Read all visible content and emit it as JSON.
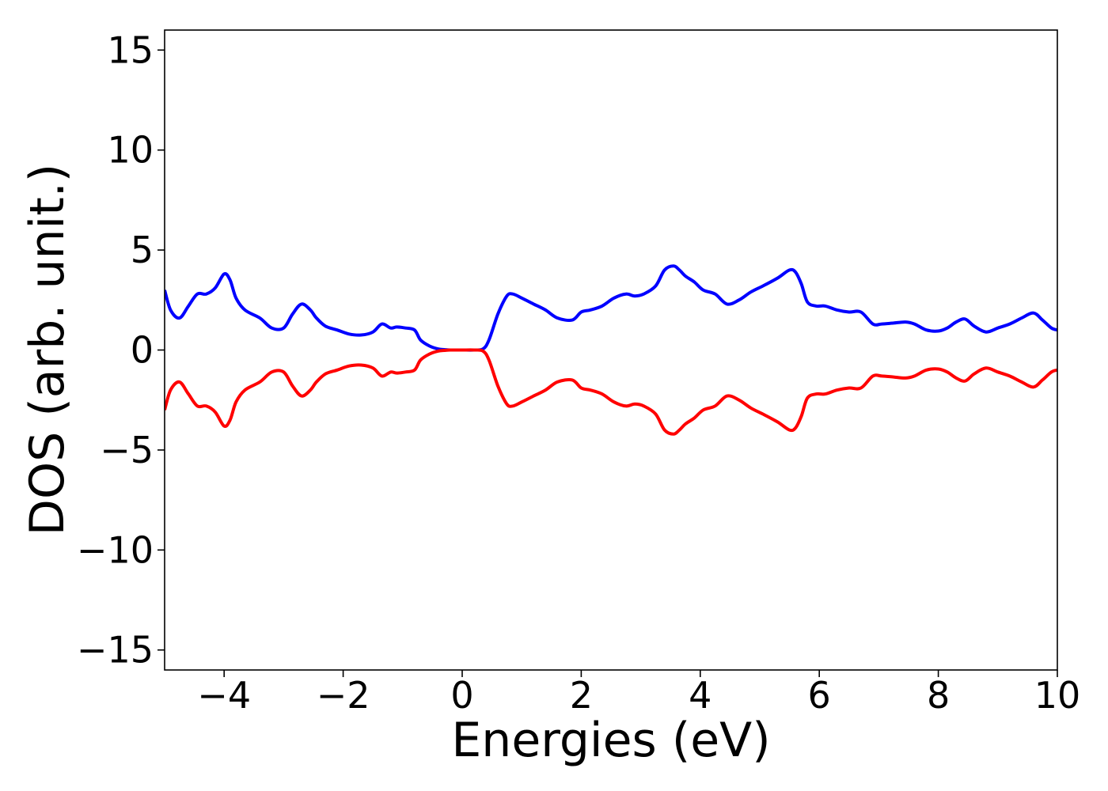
{
  "chart_data": {
    "type": "line",
    "title": "",
    "xlabel": "Energies (eV)",
    "ylabel": "DOS (arb. unit.)",
    "xlim": [
      -5,
      10
    ],
    "ylim": [
      -16,
      16
    ],
    "grid": false,
    "legend": "none",
    "x_ticks": [
      -4,
      -2,
      0,
      2,
      4,
      6,
      8,
      10
    ],
    "x_tick_labels": [
      "−4",
      "−2",
      "0",
      "2",
      "4",
      "6",
      "8",
      "10"
    ],
    "y_ticks": [
      -15,
      -10,
      -5,
      0,
      5,
      10,
      15
    ],
    "y_tick_labels": [
      "−15",
      "−10",
      "−5",
      "0",
      "5",
      "10",
      "15"
    ],
    "series": [
      {
        "color": "#0000ff",
        "x": [
          -5.0,
          -4.9,
          -4.75,
          -4.6,
          -4.45,
          -4.3,
          -4.15,
          -4.0,
          -3.9,
          -3.8,
          -3.65,
          -3.4,
          -3.2,
          -3.0,
          -2.85,
          -2.7,
          -2.55,
          -2.45,
          -2.3,
          -2.1,
          -1.9,
          -1.7,
          -1.5,
          -1.35,
          -1.2,
          -1.1,
          -0.95,
          -0.8,
          -0.7,
          -0.55,
          -0.4,
          -0.3,
          -0.2,
          0.0,
          0.2,
          0.35,
          0.45,
          0.6,
          0.75,
          0.85,
          1.0,
          1.2,
          1.4,
          1.6,
          1.85,
          2.0,
          2.15,
          2.35,
          2.55,
          2.75,
          2.9,
          3.05,
          3.25,
          3.4,
          3.55,
          3.65,
          3.75,
          3.9,
          4.05,
          4.25,
          4.45,
          4.65,
          4.85,
          5.05,
          5.3,
          5.5,
          5.6,
          5.7,
          5.8,
          5.95,
          6.1,
          6.3,
          6.5,
          6.7,
          6.9,
          7.05,
          7.25,
          7.45,
          7.6,
          7.8,
          8.0,
          8.15,
          8.3,
          8.45,
          8.6,
          8.8,
          9.0,
          9.2,
          9.4,
          9.6,
          9.75,
          9.9,
          10.0
        ],
        "y": [
          3.0,
          2.0,
          1.6,
          2.2,
          2.8,
          2.8,
          3.1,
          3.8,
          3.5,
          2.6,
          2.0,
          1.6,
          1.1,
          1.1,
          1.8,
          2.3,
          2.0,
          1.6,
          1.2,
          1.0,
          0.8,
          0.75,
          0.9,
          1.3,
          1.1,
          1.15,
          1.1,
          1.0,
          0.5,
          0.2,
          0.05,
          0.02,
          0.0,
          0.0,
          0.0,
          0.05,
          0.5,
          1.8,
          2.7,
          2.8,
          2.6,
          2.3,
          2.0,
          1.6,
          1.5,
          1.9,
          2.0,
          2.2,
          2.6,
          2.8,
          2.7,
          2.8,
          3.2,
          4.0,
          4.2,
          4.0,
          3.7,
          3.4,
          3.0,
          2.8,
          2.3,
          2.5,
          2.9,
          3.2,
          3.6,
          4.0,
          3.9,
          3.3,
          2.4,
          2.2,
          2.2,
          2.0,
          1.9,
          1.9,
          1.3,
          1.3,
          1.35,
          1.4,
          1.3,
          1.0,
          0.95,
          1.1,
          1.4,
          1.55,
          1.2,
          0.9,
          1.1,
          1.3,
          1.6,
          1.85,
          1.5,
          1.1,
          1.0
        ]
      },
      {
        "color": "#ff0000",
        "x": [
          -5.0,
          -4.9,
          -4.75,
          -4.6,
          -4.45,
          -4.3,
          -4.15,
          -4.0,
          -3.9,
          -3.8,
          -3.65,
          -3.4,
          -3.2,
          -3.0,
          -2.85,
          -2.7,
          -2.55,
          -2.45,
          -2.3,
          -2.1,
          -1.9,
          -1.7,
          -1.5,
          -1.35,
          -1.2,
          -1.1,
          -0.95,
          -0.8,
          -0.7,
          -0.55,
          -0.4,
          -0.3,
          -0.2,
          0.0,
          0.2,
          0.35,
          0.45,
          0.6,
          0.75,
          0.85,
          1.0,
          1.2,
          1.4,
          1.6,
          1.85,
          2.0,
          2.15,
          2.35,
          2.55,
          2.75,
          2.9,
          3.05,
          3.25,
          3.4,
          3.55,
          3.65,
          3.75,
          3.9,
          4.05,
          4.25,
          4.45,
          4.65,
          4.85,
          5.05,
          5.3,
          5.5,
          5.6,
          5.7,
          5.8,
          5.95,
          6.1,
          6.3,
          6.5,
          6.7,
          6.9,
          7.05,
          7.25,
          7.45,
          7.6,
          7.8,
          8.0,
          8.15,
          8.3,
          8.45,
          8.6,
          8.8,
          9.0,
          9.2,
          9.4,
          9.6,
          9.75,
          9.9,
          10.0
        ],
        "y": [
          -3.0,
          -2.0,
          -1.6,
          -2.2,
          -2.8,
          -2.8,
          -3.1,
          -3.8,
          -3.5,
          -2.6,
          -2.0,
          -1.6,
          -1.1,
          -1.1,
          -1.8,
          -2.3,
          -2.0,
          -1.6,
          -1.2,
          -1.0,
          -0.8,
          -0.75,
          -0.9,
          -1.3,
          -1.1,
          -1.15,
          -1.1,
          -1.0,
          -0.5,
          -0.2,
          -0.05,
          -0.02,
          0.0,
          0.0,
          0.0,
          -0.05,
          -0.5,
          -1.8,
          -2.7,
          -2.8,
          -2.6,
          -2.3,
          -2.0,
          -1.6,
          -1.5,
          -1.9,
          -2.0,
          -2.2,
          -2.6,
          -2.8,
          -2.7,
          -2.8,
          -3.2,
          -4.0,
          -4.2,
          -4.0,
          -3.7,
          -3.4,
          -3.0,
          -2.8,
          -2.3,
          -2.5,
          -2.9,
          -3.2,
          -3.6,
          -4.0,
          -3.9,
          -3.3,
          -2.4,
          -2.2,
          -2.2,
          -2.0,
          -1.9,
          -1.9,
          -1.3,
          -1.3,
          -1.35,
          -1.4,
          -1.3,
          -1.0,
          -0.95,
          -1.1,
          -1.4,
          -1.55,
          -1.2,
          -0.9,
          -1.1,
          -1.3,
          -1.6,
          -1.85,
          -1.5,
          -1.1,
          -1.0
        ]
      }
    ]
  }
}
